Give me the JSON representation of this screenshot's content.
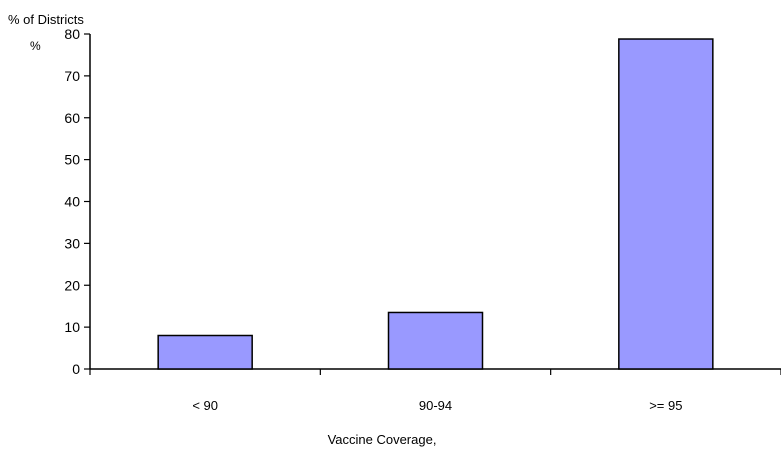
{
  "chart_data": {
    "type": "bar",
    "title": "% of Districts",
    "ylabel": "%",
    "xlabel": "Vaccine Coverage,",
    "categories": [
      "< 90",
      "90-94",
      ">= 95"
    ],
    "values": [
      8,
      13.5,
      78.8
    ],
    "ylim": [
      0,
      80
    ],
    "yticks": [
      "0",
      "10",
      "20",
      "30",
      "40",
      "50",
      "60",
      "70",
      "80"
    ],
    "bar_color": "#9999ff",
    "bar_edge_color": "#000000",
    "grid": false,
    "legend": "none"
  }
}
